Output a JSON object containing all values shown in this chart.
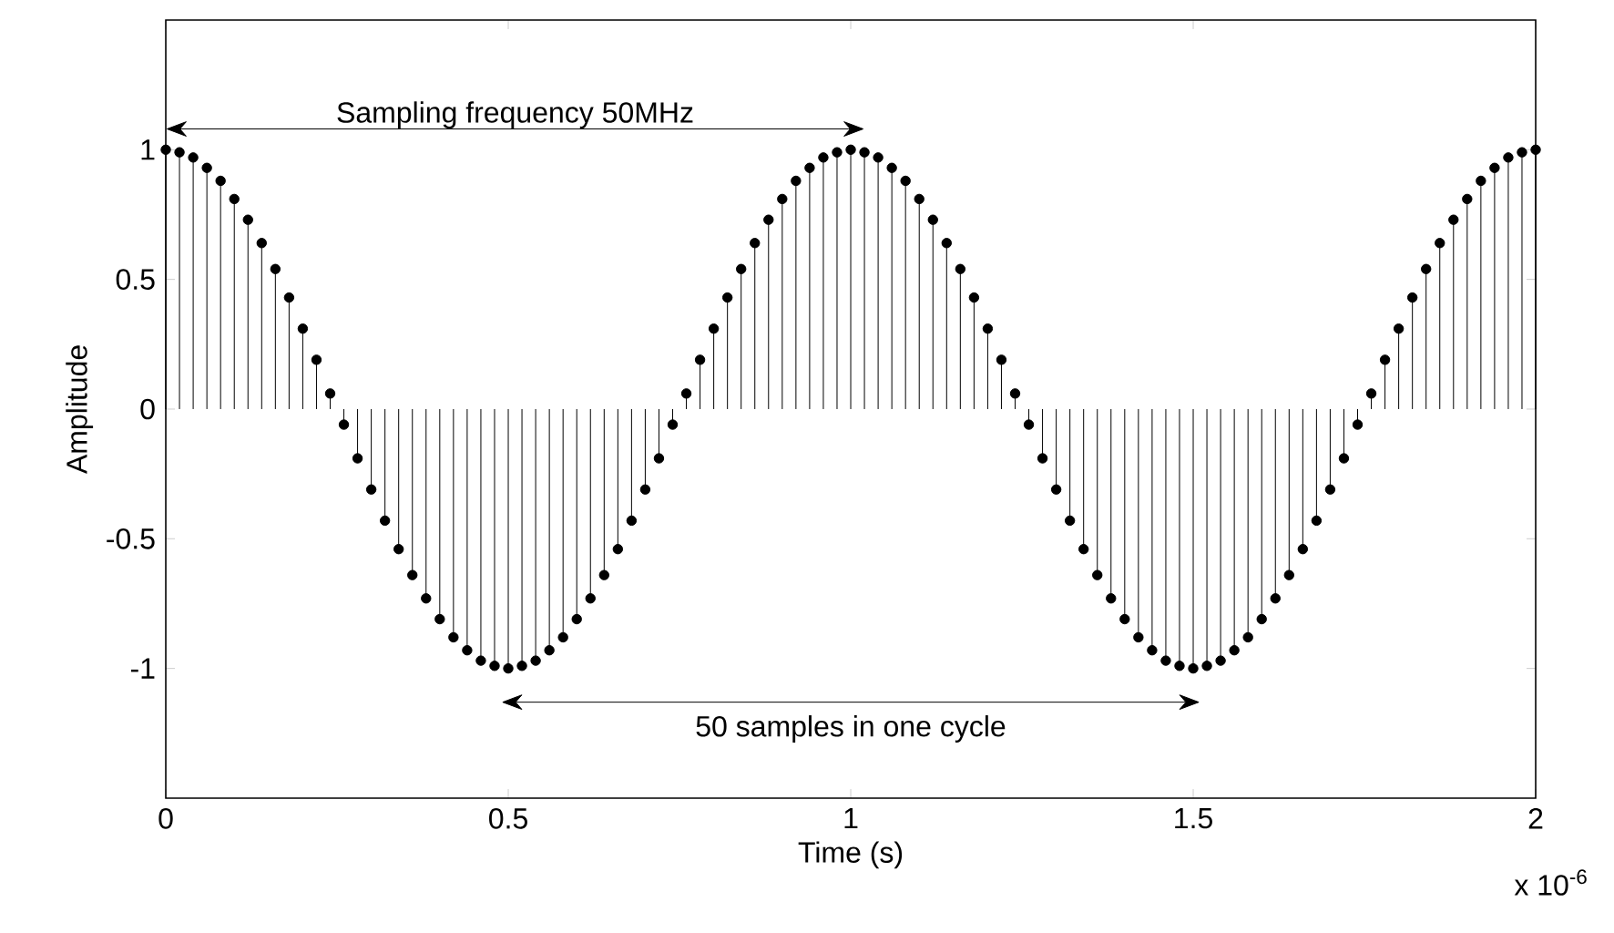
{
  "chart_data": {
    "type": "lollipop",
    "xlabel": "Time (s)",
    "ylabel": "Amplitude",
    "color": "#000000",
    "marker": "circle",
    "x": [
      0,
      0.02,
      0.04,
      0.06,
      0.08,
      0.1,
      0.12,
      0.14,
      0.16,
      0.18,
      0.2,
      0.22,
      0.24,
      0.26,
      0.28,
      0.3,
      0.32,
      0.34,
      0.36,
      0.38,
      0.4,
      0.42,
      0.44,
      0.46,
      0.48,
      0.5,
      0.52,
      0.54,
      0.56,
      0.58,
      0.6,
      0.62,
      0.64,
      0.66,
      0.68,
      0.7,
      0.72,
      0.74,
      0.76,
      0.78,
      0.8,
      0.82,
      0.84,
      0.86,
      0.88,
      0.9,
      0.92,
      0.94,
      0.96,
      0.98,
      1,
      1.02,
      1.04,
      1.06,
      1.08,
      1.1,
      1.12,
      1.14,
      1.16,
      1.18,
      1.2,
      1.22,
      1.24,
      1.26,
      1.28,
      1.3,
      1.32,
      1.34,
      1.36,
      1.38,
      1.4,
      1.42,
      1.44,
      1.46,
      1.48,
      1.5,
      1.52,
      1.54,
      1.56,
      1.58,
      1.6,
      1.62,
      1.64,
      1.66,
      1.68,
      1.7,
      1.72,
      1.74,
      1.76,
      1.78,
      1.8,
      1.82,
      1.84,
      1.86,
      1.88,
      1.9,
      1.92,
      1.94,
      1.96,
      1.98,
      2
    ],
    "values": [
      1,
      0.99,
      0.97,
      0.93,
      0.88,
      0.81,
      0.73,
      0.64,
      0.54,
      0.43,
      0.31,
      0.19,
      0.06,
      -0.06,
      -0.19,
      -0.31,
      -0.43,
      -0.54,
      -0.64,
      -0.73,
      -0.81,
      -0.88,
      -0.93,
      -0.97,
      -0.99,
      -1,
      -0.99,
      -0.97,
      -0.93,
      -0.88,
      -0.81,
      -0.73,
      -0.64,
      -0.54,
      -0.43,
      -0.31,
      -0.19,
      -0.06,
      0.06,
      0.19,
      0.31,
      0.43,
      0.54,
      0.64,
      0.73,
      0.81,
      0.88,
      0.93,
      0.97,
      0.99,
      1,
      0.99,
      0.97,
      0.93,
      0.88,
      0.81,
      0.73,
      0.64,
      0.54,
      0.43,
      0.31,
      0.19,
      0.06,
      -0.06,
      -0.19,
      -0.31,
      -0.43,
      -0.54,
      -0.64,
      -0.73,
      -0.81,
      -0.88,
      -0.93,
      -0.97,
      -0.99,
      -1,
      -0.99,
      -0.97,
      -0.93,
      -0.88,
      -0.81,
      -0.73,
      -0.64,
      -0.54,
      -0.43,
      -0.31,
      -0.19,
      -0.06,
      0.06,
      0.19,
      0.31,
      0.43,
      0.54,
      0.64,
      0.73,
      0.81,
      0.88,
      0.93,
      0.97,
      0.99,
      1
    ],
    "xlim": [
      0,
      2
    ],
    "ylim": [
      -1.5,
      1.5
    ],
    "xticks": [
      0,
      0.5,
      1,
      1.5,
      2
    ],
    "yticks": [
      -1,
      -0.5,
      0,
      0.5,
      1
    ],
    "annotations": [
      "Sampling frequency 50MHz",
      "50 samples in one cycle",
      "x 10$^{-6}$"
    ]
  }
}
